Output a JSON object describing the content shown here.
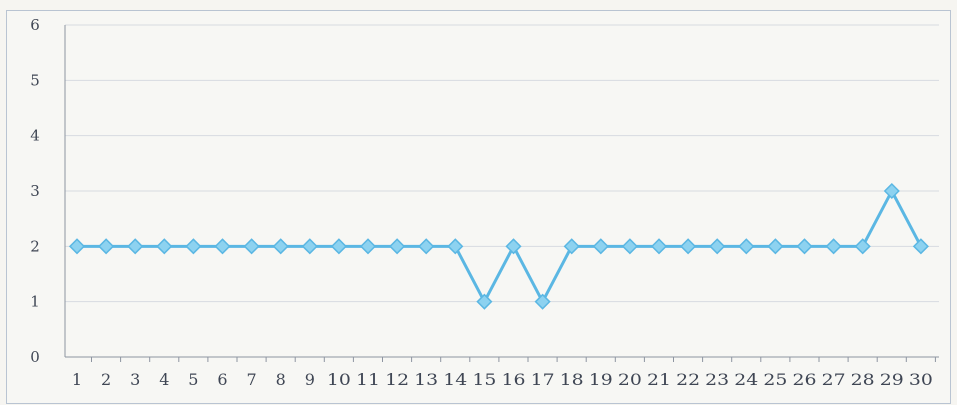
{
  "chart_data": {
    "type": "line",
    "title": "",
    "xlabel": "",
    "ylabel": "",
    "ylim": [
      0,
      6
    ],
    "y_ticks": [
      "0",
      "1",
      "2",
      "3",
      "4",
      "5",
      "6"
    ],
    "grid": true,
    "legend": "none",
    "x": [
      1,
      2,
      3,
      4,
      5,
      6,
      7,
      8,
      9,
      10,
      11,
      12,
      13,
      14,
      15,
      16,
      17,
      18,
      19,
      20,
      21,
      22,
      23,
      24,
      25,
      26,
      27,
      28,
      29,
      30
    ],
    "x_tick_labels": [
      "1",
      "2",
      "3",
      "4",
      "5",
      "6",
      "7",
      "8",
      "9",
      "10",
      "11",
      "12",
      "13",
      "14",
      "15",
      "16",
      "17",
      "18",
      "19",
      "20",
      "21",
      "22",
      "23",
      "24",
      "25",
      "26",
      "27",
      "28",
      "29",
      "30"
    ],
    "series": [
      {
        "values": [
          2,
          2,
          2,
          2,
          2,
          2,
          2,
          2,
          2,
          2,
          2,
          2,
          2,
          2,
          1,
          2,
          1,
          2,
          2,
          2,
          2,
          2,
          2,
          2,
          2,
          2,
          2,
          2,
          3,
          2
        ],
        "color": "#5bb7e3",
        "marker": "diamond"
      }
    ]
  },
  "colors": {
    "series": "#5bb7e3",
    "marker_fill": "#8dd2f0",
    "gridline": "#d7dbe1",
    "axis": "#8e95a1",
    "tick_text": "#3f4654"
  }
}
